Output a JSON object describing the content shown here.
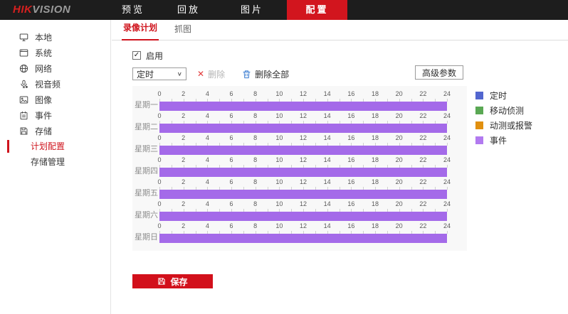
{
  "topbar": {
    "logo": {
      "hik": "HIK",
      "vision": "VISION"
    },
    "nav": [
      {
        "label": "预览",
        "active": false
      },
      {
        "label": "回放",
        "active": false
      },
      {
        "label": "图片",
        "active": false
      },
      {
        "label": "配置",
        "active": true
      }
    ]
  },
  "sidebar": {
    "items": [
      {
        "label": "本地",
        "icon": "monitor-icon"
      },
      {
        "label": "系统",
        "icon": "system-icon"
      },
      {
        "label": "网络",
        "icon": "network-icon"
      },
      {
        "label": "视音频",
        "icon": "audio-video-icon"
      },
      {
        "label": "图像",
        "icon": "image-icon"
      },
      {
        "label": "事件",
        "icon": "event-icon"
      },
      {
        "label": "存储",
        "icon": "storage-icon"
      }
    ],
    "sub_items": [
      {
        "label": "计划配置",
        "active": true
      },
      {
        "label": "存储管理",
        "active": false
      }
    ]
  },
  "tabs": [
    {
      "label": "录像计划",
      "active": true
    },
    {
      "label": "抓图",
      "active": false
    }
  ],
  "enable_checkbox": {
    "label": "启用",
    "checked": true
  },
  "toolbar": {
    "record_type_value": "定时",
    "delete_label": "删除",
    "delete_all_label": "删除全部",
    "advanced_button_label": "高级参数"
  },
  "icons": {
    "check": "✓",
    "delete_x": "✕",
    "chevron": "∨"
  },
  "legend": [
    {
      "label": "定时",
      "color": "#5266cf"
    },
    {
      "label": "移动侦测",
      "color": "#5aa854"
    },
    {
      "label": "动测或报警",
      "color": "#e1900f"
    },
    {
      "label": "事件",
      "color": "#b27af0"
    }
  ],
  "schedule": {
    "days": [
      "星期一",
      "星期二",
      "星期三",
      "星期四",
      "星期五",
      "星期六",
      "星期日"
    ],
    "tick_labels": [
      0,
      2,
      4,
      6,
      8,
      10,
      12,
      14,
      16,
      18,
      20,
      22,
      24
    ],
    "hours_per_day": 24,
    "bar_color": "#a46ae9",
    "bars": [
      {
        "day": "星期一",
        "start": 0,
        "end": 24,
        "type": "事件"
      },
      {
        "day": "星期二",
        "start": 0,
        "end": 24,
        "type": "事件"
      },
      {
        "day": "星期三",
        "start": 0,
        "end": 24,
        "type": "事件"
      },
      {
        "day": "星期四",
        "start": 0,
        "end": 24,
        "type": "事件"
      },
      {
        "day": "星期五",
        "start": 0,
        "end": 24,
        "type": "事件"
      },
      {
        "day": "星期六",
        "start": 0,
        "end": 24,
        "type": "事件"
      },
      {
        "day": "星期日",
        "start": 0,
        "end": 24,
        "type": "事件"
      }
    ]
  },
  "save_button": {
    "label": "保存"
  },
  "colors": {
    "accent_red": "#d2151e",
    "topbar_bg": "#1d1d1d",
    "panel_bg": "#f8f8f8",
    "trash_blue": "#4a87d5"
  }
}
